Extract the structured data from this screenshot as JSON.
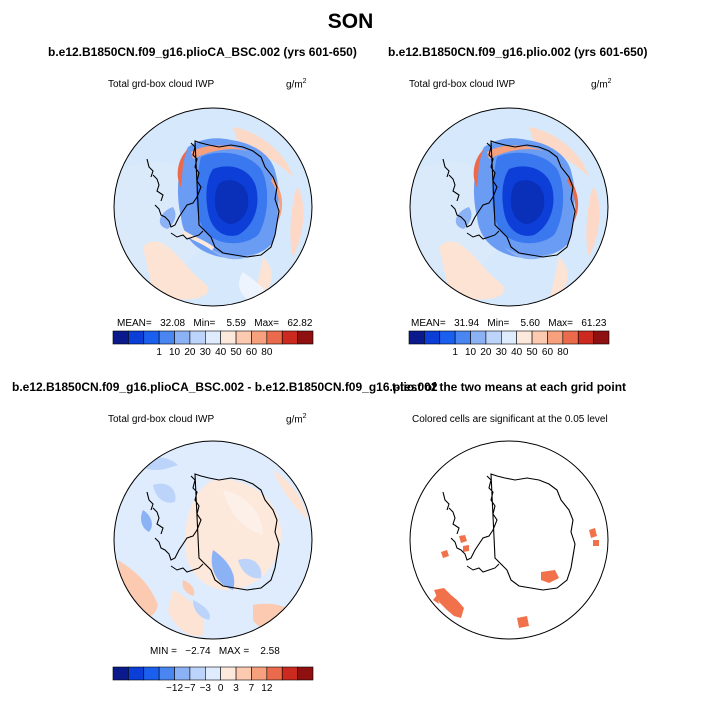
{
  "figure": {
    "title": "SON"
  },
  "panels": [
    {
      "id": "tl",
      "title": "b.e12.B1850CN.f09_g16.plioCA_BSC.002 (yrs 601-650)",
      "subtitle": "Total grd-box cloud IWP",
      "units": "g/m",
      "units_sup": "2",
      "stats": "MEAN=   32.08   Min=    5.59   Max=   62.82",
      "colorbar": {
        "labels": [
          "1",
          "10",
          "20",
          "30",
          "40",
          "50",
          "60",
          "80"
        ],
        "colors": [
          "#0a1a8c",
          "#0a3ed6",
          "#1a5fee",
          "#4a86f2",
          "#8cb2f6",
          "#bcd4fa",
          "#deecfd",
          "#fde8dc",
          "#fccab0",
          "#f7a07e",
          "#ec6a4c",
          "#cc2a1e",
          "#8f1010"
        ]
      }
    },
    {
      "id": "tr",
      "title": "b.e12.B1850CN.f09_g16.plio.002 (yrs 601-650)",
      "subtitle": "Total grd-box cloud IWP",
      "units": "g/m",
      "units_sup": "2",
      "stats": "MEAN=   31.94   Min=    5.60   Max=   61.23",
      "colorbar": {
        "labels": [
          "1",
          "10",
          "20",
          "30",
          "40",
          "50",
          "60",
          "80"
        ],
        "colors": [
          "#0a1a8c",
          "#0a3ed6",
          "#1a5fee",
          "#4a86f2",
          "#8cb2f6",
          "#bcd4fa",
          "#deecfd",
          "#fde8dc",
          "#fccab0",
          "#f7a07e",
          "#ec6a4c",
          "#cc2a1e",
          "#8f1010"
        ]
      }
    },
    {
      "id": "bl",
      "title": "b.e12.B1850CN.f09_g16.plioCA_BSC.002 - b.e12.B1850CN.f09_g16.plio.002",
      "subtitle": "Total grd-box cloud IWP",
      "units": "g/m",
      "units_sup": "2",
      "stats": "MIN =   −2.74   MAX =    2.58",
      "colorbar": {
        "labels": [
          "−12",
          "−7",
          "−3",
          "0",
          "3",
          "7",
          "12"
        ],
        "colors": [
          "#0a1a8c",
          "#0a3ed6",
          "#1a5fee",
          "#4a86f2",
          "#8cb2f6",
          "#bcd4fa",
          "#deecfd",
          "#fde8dc",
          "#fccab0",
          "#f7a07e",
          "#ec6a4c",
          "#cc2a1e",
          "#8f1010"
        ]
      }
    },
    {
      "id": "br",
      "title": "t-test of the two means at each grid point",
      "subtitle": "Colored cells are significant at the 0.05 level"
    }
  ],
  "colors": {
    "significance": "#f0714a",
    "coastline": "#000000",
    "ocean_bg": "#d4e6fb"
  }
}
